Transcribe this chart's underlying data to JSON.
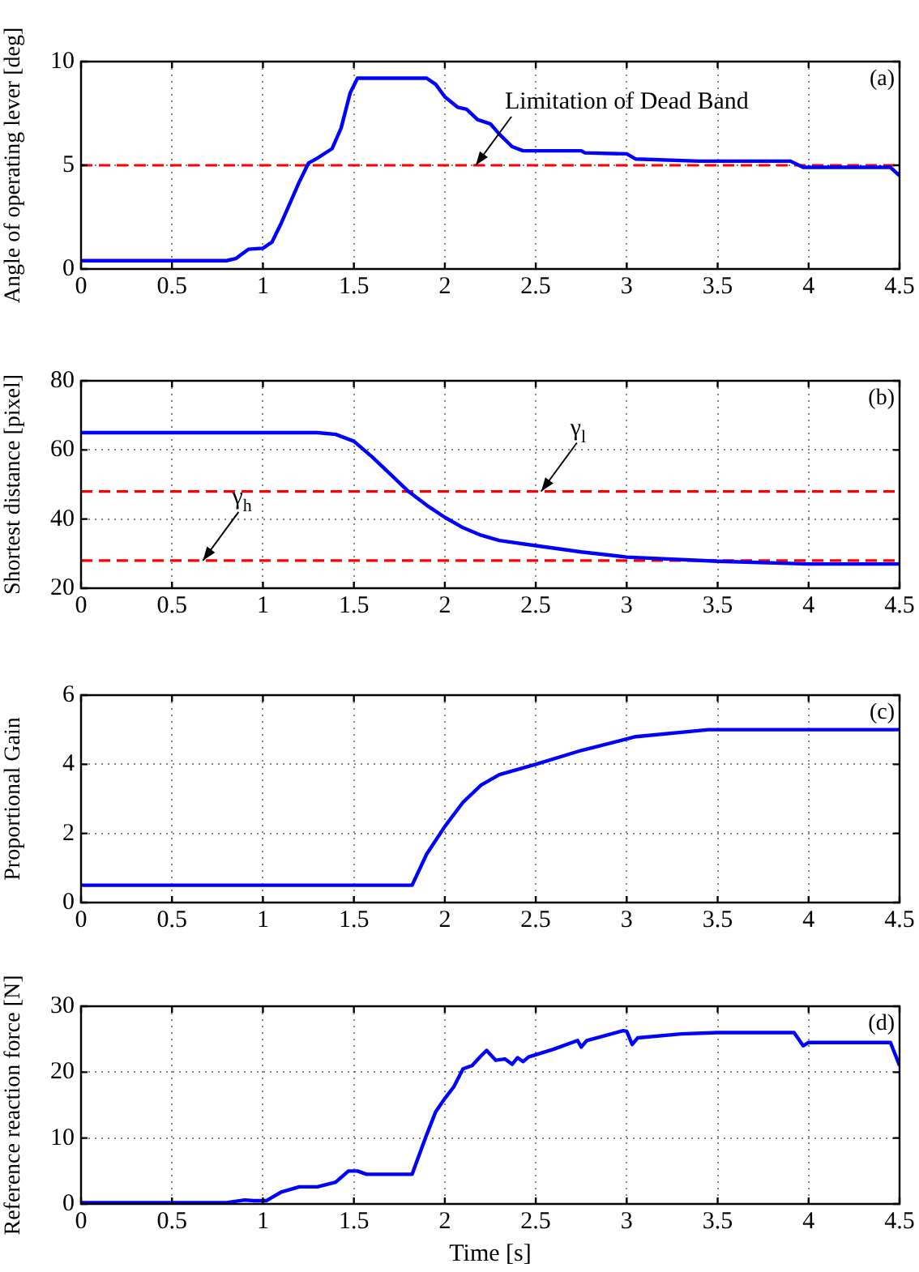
{
  "chart_data": [
    {
      "type": "line",
      "ylabel": "Angle of operating lever [deg]",
      "x": [
        0,
        0.8,
        0.85,
        0.92,
        1.0,
        1.05,
        1.1,
        1.15,
        1.2,
        1.25,
        1.3,
        1.38,
        1.43,
        1.48,
        1.52,
        1.9,
        1.95,
        2.0,
        2.07,
        2.12,
        2.18,
        2.25,
        2.3,
        2.37,
        2.43,
        2.75,
        2.77,
        3.0,
        3.05,
        3.4,
        3.9,
        3.97,
        4.45,
        4.5
      ],
      "series": [
        {
          "color": "#0000ff",
          "values": [
            0.4,
            0.4,
            0.5,
            0.95,
            1.0,
            1.3,
            2.2,
            3.2,
            4.2,
            5.1,
            5.35,
            5.8,
            6.8,
            8.5,
            9.2,
            9.2,
            8.9,
            8.3,
            7.8,
            7.7,
            7.2,
            7.0,
            6.5,
            5.9,
            5.7,
            5.7,
            5.6,
            5.55,
            5.3,
            5.2,
            5.2,
            4.9,
            4.9,
            4.5
          ]
        }
      ],
      "xlim": [
        0,
        4.5
      ],
      "xticks": [
        0,
        0.5,
        1,
        1.5,
        2,
        2.5,
        3,
        3.5,
        4,
        4.5
      ],
      "ylim": [
        0,
        10
      ],
      "yticks": [
        0,
        5,
        10
      ],
      "grid": true,
      "ref_lines": [
        {
          "axis": "y",
          "value": 5,
          "color": "#ff0000",
          "line_style": "dashed"
        }
      ],
      "annotations": [
        "(a)",
        {
          "text": "Limitation of Dead Band",
          "x": 2.17,
          "y": 5
        }
      ]
    },
    {
      "type": "line",
      "ylabel": "Shortest distance [pixel]",
      "x": [
        0,
        1.3,
        1.4,
        1.5,
        1.6,
        1.7,
        1.8,
        1.9,
        2.0,
        2.1,
        2.2,
        2.3,
        2.5,
        2.75,
        3.0,
        3.5,
        4.0,
        4.5
      ],
      "series": [
        {
          "color": "#0000ff",
          "values": [
            65,
            65,
            64.5,
            62.5,
            58,
            53,
            48,
            44,
            40.5,
            37.5,
            35.3,
            33.8,
            32.3,
            30.5,
            29,
            27.8,
            27,
            27
          ]
        }
      ],
      "xlim": [
        0,
        4.5
      ],
      "xticks": [
        0,
        0.5,
        1,
        1.5,
        2,
        2.5,
        3,
        3.5,
        4,
        4.5
      ],
      "ylim": [
        20,
        80
      ],
      "yticks": [
        20,
        40,
        60,
        80
      ],
      "grid": true,
      "ref_lines": [
        {
          "axis": "y",
          "value": 48,
          "color": "#ff0000",
          "line_style": "dashed"
        },
        {
          "axis": "y",
          "value": 28,
          "color": "#ff0000",
          "line_style": "dashed"
        }
      ],
      "annotations": [
        "(b)",
        {
          "text": "γ$_{l}$",
          "x": 2.53,
          "y": 48
        },
        {
          "text": "γ$_{h}$",
          "x": 0.67,
          "y": 28
        }
      ]
    },
    {
      "type": "line",
      "ylabel": "Proportional Gain",
      "x": [
        0,
        1.82,
        1.9,
        2.0,
        2.1,
        2.2,
        2.3,
        2.5,
        2.75,
        3.05,
        3.45,
        4.5
      ],
      "series": [
        {
          "color": "#0000ff",
          "values": [
            0.5,
            0.5,
            1.4,
            2.2,
            2.9,
            3.4,
            3.7,
            4.0,
            4.4,
            4.8,
            5.0,
            5.0
          ]
        }
      ],
      "xlim": [
        0,
        4.5
      ],
      "xticks": [
        0,
        0.5,
        1,
        1.5,
        2,
        2.5,
        3,
        3.5,
        4,
        4.5
      ],
      "ylim": [
        0,
        6
      ],
      "yticks": [
        0,
        2,
        4,
        6
      ],
      "grid": true,
      "annotations": [
        "(c)"
      ]
    },
    {
      "type": "line",
      "ylabel": "Reference reaction force [N]",
      "xlabel": "Time [s]",
      "x": [
        0,
        0.8,
        0.9,
        0.95,
        1.02,
        1.1,
        1.2,
        1.3,
        1.4,
        1.47,
        1.52,
        1.57,
        1.82,
        1.9,
        1.95,
        2.0,
        2.05,
        2.1,
        2.15,
        2.2,
        2.23,
        2.28,
        2.33,
        2.37,
        2.4,
        2.43,
        2.46,
        2.6,
        2.73,
        2.75,
        2.78,
        2.98,
        3.0,
        3.03,
        3.06,
        3.3,
        3.5,
        3.92,
        3.97,
        4.0,
        4.45,
        4.5
      ],
      "series": [
        {
          "color": "#0000ff",
          "values": [
            0.2,
            0.2,
            0.6,
            0.5,
            0.5,
            1.8,
            2.6,
            2.6,
            3.3,
            5.0,
            5.0,
            4.5,
            4.5,
            10.5,
            14,
            16,
            17.8,
            20.5,
            21,
            22.5,
            23.3,
            21.8,
            22,
            21.2,
            22.2,
            21.6,
            22.3,
            23.5,
            24.8,
            23.8,
            24.8,
            26.3,
            26.2,
            24.2,
            25.2,
            25.8,
            26,
            26,
            24.0,
            24.5,
            24.5,
            21
          ]
        }
      ],
      "xlim": [
        0,
        4.5
      ],
      "xticks": [
        0,
        0.5,
        1,
        1.5,
        2,
        2.5,
        3,
        3.5,
        4,
        4.5
      ],
      "ylim": [
        0,
        30
      ],
      "yticks": [
        0,
        10,
        20,
        30
      ],
      "grid": true,
      "annotations": [
        "(d)"
      ]
    }
  ]
}
